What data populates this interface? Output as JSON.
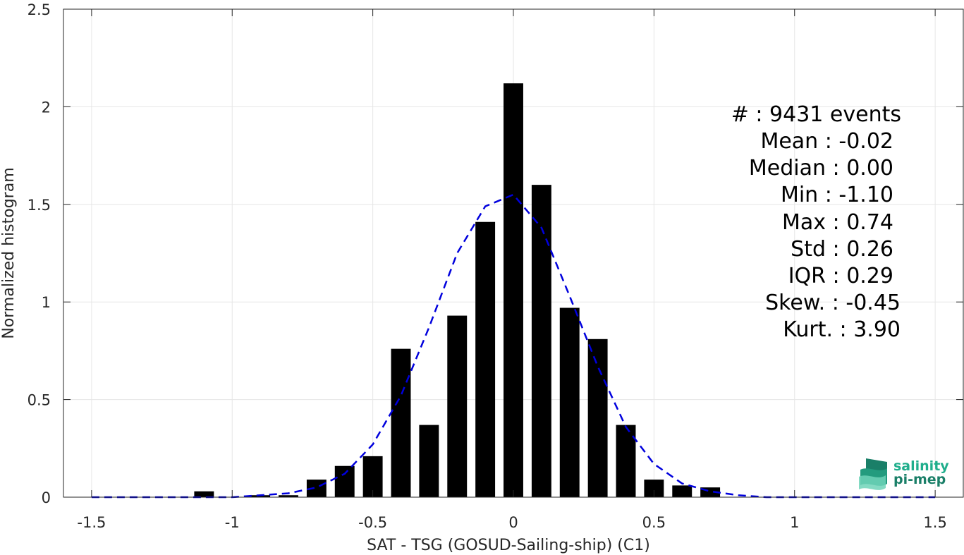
{
  "chart_data": {
    "type": "bar",
    "xlabel": "SAT - TSG (GOSUD-Sailing-ship) (C1)",
    "ylabel": "Normalized histogram",
    "xlim": [
      -1.6,
      1.6
    ],
    "ylim": [
      0,
      2.5
    ],
    "grid": true,
    "bar_color": "#000000",
    "x_ticks": [
      -1.5,
      -1,
      -0.5,
      0,
      0.5,
      1,
      1.5
    ],
    "x_tick_labels": [
      "-1.5",
      "-1",
      "-0.5",
      "0",
      "0.5",
      "1",
      "1.5"
    ],
    "y_ticks": [
      0,
      0.5,
      1,
      1.5,
      2,
      2.5
    ],
    "y_tick_labels": [
      "0",
      "0.5",
      "1",
      "1.5",
      "2",
      "2.5"
    ],
    "bar_width": 0.07,
    "bars": [
      {
        "x": -1.1,
        "y": 0.03
      },
      {
        "x": -0.9,
        "y": 0.01
      },
      {
        "x": -0.8,
        "y": 0.01
      },
      {
        "x": -0.7,
        "y": 0.09
      },
      {
        "x": -0.6,
        "y": 0.16
      },
      {
        "x": -0.5,
        "y": 0.21
      },
      {
        "x": -0.4,
        "y": 0.76
      },
      {
        "x": -0.3,
        "y": 0.37
      },
      {
        "x": -0.2,
        "y": 0.93
      },
      {
        "x": -0.1,
        "y": 1.41
      },
      {
        "x": 0.0,
        "y": 2.12
      },
      {
        "x": 0.1,
        "y": 1.6
      },
      {
        "x": 0.2,
        "y": 0.97
      },
      {
        "x": 0.3,
        "y": 0.81
      },
      {
        "x": 0.4,
        "y": 0.37
      },
      {
        "x": 0.5,
        "y": 0.09
      },
      {
        "x": 0.6,
        "y": 0.06
      },
      {
        "x": 0.7,
        "y": 0.05
      }
    ],
    "fit_curve": {
      "color": "#0000dd",
      "style": "dashed",
      "x": [
        -1.5,
        -1.4,
        -1.3,
        -1.2,
        -1.1,
        -1.0,
        -0.9,
        -0.8,
        -0.7,
        -0.6,
        -0.5,
        -0.4,
        -0.3,
        -0.2,
        -0.1,
        0.0,
        0.1,
        0.2,
        0.3,
        0.4,
        0.5,
        0.6,
        0.7,
        0.8,
        0.9,
        1.0,
        1.1,
        1.2,
        1.3,
        1.4,
        1.5
      ],
      "y": [
        0,
        0,
        0,
        0,
        0,
        0.0,
        0.01,
        0.02,
        0.05,
        0.12,
        0.27,
        0.52,
        0.87,
        1.25,
        1.49,
        1.55,
        1.38,
        1.03,
        0.67,
        0.36,
        0.17,
        0.07,
        0.03,
        0.01,
        0,
        0,
        0,
        0,
        0,
        0,
        0
      ]
    },
    "stats": [
      "#  : 9431 events",
      "Mean : -0.02",
      "Median : 0.00",
      "Min : -1.10",
      "Max : 0.74",
      "Std : 0.26",
      "IQR : 0.29",
      "Skew. : -0.45",
      "Kurt. : 3.90"
    ]
  },
  "logo": {
    "line1": "salinity",
    "line2": "pi-mep",
    "color_dark": "#1a7f68",
    "color_light": "#2fbf9a"
  }
}
